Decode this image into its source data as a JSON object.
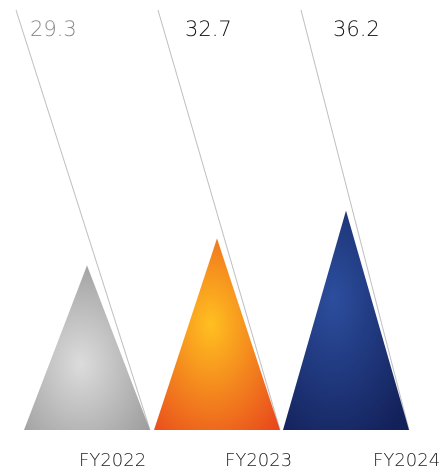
{
  "chart_data": {
    "type": "bar",
    "categories": [
      "FY2022",
      "FY2023",
      "FY2024"
    ],
    "values": [
      29.3,
      32.7,
      36.2
    ],
    "value_labels": [
      "29.3",
      "32.7",
      "36.2"
    ],
    "title": "",
    "xlabel": "",
    "ylabel": "",
    "grid": false,
    "legend": "none",
    "colors": {
      "FY2022": {
        "light": "#dcdcdc",
        "dark": "#9a9a9a"
      },
      "FY2023": {
        "light": "#ffc020",
        "dark": "#e8481c"
      },
      "FY2024": {
        "light": "#2c4e9e",
        "dark": "#13215a"
      },
      "label_muted": "#8a8a8a",
      "label_strong": "#111111",
      "leader_line": "#bfbfbf"
    }
  }
}
